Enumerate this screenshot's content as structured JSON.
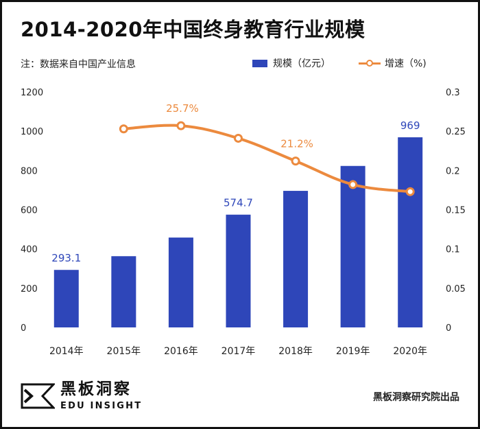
{
  "title": "2014-2020年中国终身教育行业规模",
  "note": "注：数据来自中国产业信息",
  "legend": {
    "bar_label": "规模（亿元）",
    "line_label": "增速（%)"
  },
  "footer": {
    "logo_cn": "黑板洞察",
    "logo_en": "EDU INSIGHT",
    "source": "黑板洞察研究院出品"
  },
  "colors": {
    "bar": "#2e46b9",
    "line": "#ec8a3e",
    "bar_label": "#2e46b9",
    "line_label": "#ec8a3e"
  },
  "chart_data": {
    "type": "bar",
    "categories": [
      "2014年",
      "2015年",
      "2016年",
      "2017年",
      "2018年",
      "2019年",
      "2020年"
    ],
    "series": [
      {
        "name": "规模（亿元）",
        "type": "bar",
        "axis": "left",
        "values": [
          293.1,
          363,
          458,
          574.7,
          696,
          823,
          969
        ]
      },
      {
        "name": "增速（%)",
        "type": "line",
        "axis": "right",
        "values": [
          null,
          0.253,
          0.257,
          0.241,
          0.212,
          0.182,
          0.173
        ]
      }
    ],
    "data_labels": {
      "bar": [
        "293.1",
        "",
        "",
        "574.7",
        "",
        "",
        "969"
      ],
      "line": [
        "",
        "",
        "25.7%",
        "",
        "21.2%",
        "",
        ""
      ]
    },
    "left_axis": {
      "ylim": [
        0,
        1200
      ],
      "ticks": [
        0,
        200,
        400,
        600,
        800,
        1000,
        1200
      ]
    },
    "right_axis": {
      "ylim": [
        0,
        0.3
      ],
      "ticks": [
        "0",
        "0.05",
        "0.1",
        "0.15",
        "0.2",
        "0.25",
        "0.3"
      ]
    },
    "grid": false,
    "legend_position": "top-right"
  }
}
